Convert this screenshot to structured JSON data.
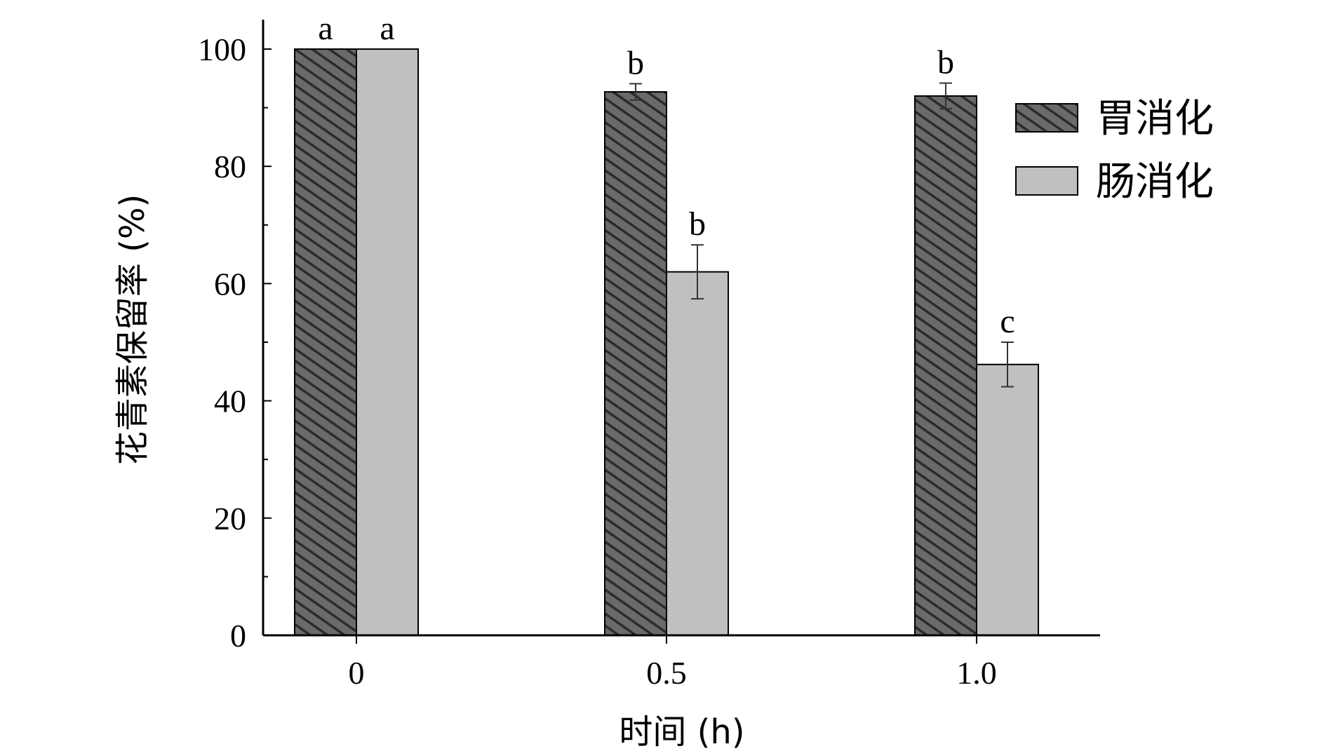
{
  "chart_data": {
    "type": "bar",
    "categories": [
      "0",
      "0.5",
      "1.0"
    ],
    "xlabel": "时间 (h)",
    "ylabel": "花青素保留率 (%)",
    "ylim": [
      0,
      100
    ],
    "yticks": [
      0,
      20,
      40,
      60,
      80,
      100
    ],
    "legend_position": "top-right",
    "grid": false,
    "series": [
      {
        "name": "胃消化",
        "values": [
          100,
          92.7,
          92.0
        ],
        "errors": [
          0,
          1.4,
          2.2
        ],
        "labels": [
          "a",
          "b",
          "b"
        ],
        "color": "#555555",
        "pattern": "hatched"
      },
      {
        "name": "肠消化",
        "values": [
          100,
          62.0,
          46.2
        ],
        "errors": [
          0,
          4.6,
          3.8
        ],
        "labels": [
          "a",
          "b",
          "c"
        ],
        "color": "#c0c0c0",
        "pattern": "solid"
      }
    ]
  }
}
